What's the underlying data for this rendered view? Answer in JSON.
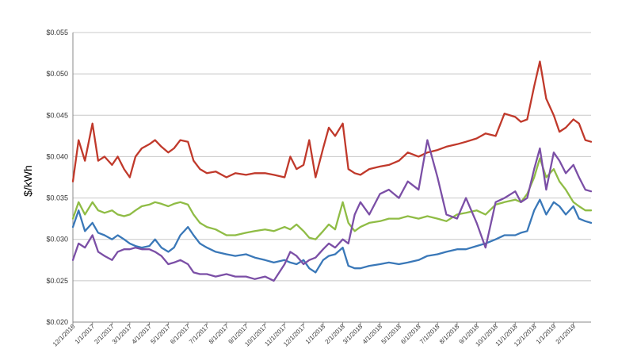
{
  "chart_data": {
    "type": "line",
    "xlabel": "",
    "ylabel": "$/kWh",
    "ylim": [
      0.02,
      0.055
    ],
    "y_ticks": [
      "$0.020",
      "$0.025",
      "$0.030",
      "$0.035",
      "$0.040",
      "$0.045",
      "$0.050",
      "$0.055"
    ],
    "y_tick_values": [
      0.02,
      0.025,
      0.03,
      0.035,
      0.04,
      0.045,
      0.05,
      0.055
    ],
    "categories": [
      "12/1/2016",
      "1/1/2017",
      "2/1/2017",
      "3/1/2017",
      "4/1/2017",
      "5/1/2017",
      "6/1/2017",
      "7/1/2017",
      "8/1/2017",
      "9/1/2017",
      "10/1/2017",
      "11/1/2017",
      "12/1/2017",
      "1/1/2018",
      "2/1/2018",
      "3/1/2018",
      "4/1/2018",
      "5/1/2018",
      "6/1/2018",
      "7/1/2018",
      "8/1/2018",
      "9/1/2018",
      "10/1/2018",
      "11/1/2018",
      "12/1/2018",
      "1/1/2019",
      "2/1/2019"
    ],
    "x_start": "12/1/2016",
    "x_end": "3/1/2019",
    "grid": true,
    "legend": "none",
    "series": [
      {
        "color": "#c0392b",
        "x": [
          "12/1/2016",
          "12/10/2016",
          "12/20/2016",
          "1/1/2017",
          "1/10/2017",
          "1/20/2017",
          "2/1/2017",
          "2/10/2017",
          "2/20/2017",
          "3/1/2017",
          "3/10/2017",
          "3/20/2017",
          "4/1/2017",
          "4/10/2017",
          "4/20/2017",
          "5/1/2017",
          "5/10/2017",
          "5/20/2017",
          "6/1/2017",
          "6/10/2017",
          "6/20/2017",
          "7/1/2017",
          "7/15/2017",
          "8/1/2017",
          "8/15/2017",
          "9/1/2017",
          "9/15/2017",
          "10/1/2017",
          "10/15/2017",
          "11/1/2017",
          "11/10/2017",
          "11/20/2017",
          "12/1/2017",
          "12/10/2017",
          "12/20/2017",
          "1/1/2018",
          "1/10/2018",
          "1/20/2018",
          "2/1/2018",
          "2/10/2018",
          "2/20/2018",
          "3/1/2018",
          "3/15/2018",
          "4/1/2018",
          "4/15/2018",
          "5/1/2018",
          "5/15/2018",
          "6/1/2018",
          "6/15/2018",
          "7/1/2018",
          "7/15/2018",
          "8/1/2018",
          "8/15/2018",
          "9/1/2018",
          "9/15/2018",
          "10/1/2018",
          "10/15/2018",
          "11/1/2018",
          "11/10/2018",
          "11/20/2018",
          "12/1/2018",
          "12/10/2018",
          "12/20/2018",
          "1/1/2019",
          "1/10/2019",
          "1/20/2019",
          "2/1/2019",
          "2/10/2019",
          "2/20/2019",
          "3/1/2019"
        ],
        "values": [
          0.037,
          0.042,
          0.0395,
          0.044,
          0.0395,
          0.04,
          0.039,
          0.04,
          0.0385,
          0.0375,
          0.04,
          0.041,
          0.0415,
          0.042,
          0.0412,
          0.0405,
          0.041,
          0.042,
          0.0418,
          0.0395,
          0.0385,
          0.038,
          0.0382,
          0.0375,
          0.038,
          0.0378,
          0.038,
          0.038,
          0.0378,
          0.0375,
          0.04,
          0.0385,
          0.039,
          0.042,
          0.0375,
          0.041,
          0.0435,
          0.0425,
          0.044,
          0.0385,
          0.038,
          0.0378,
          0.0385,
          0.0388,
          0.039,
          0.0395,
          0.0405,
          0.04,
          0.0405,
          0.0408,
          0.0412,
          0.0415,
          0.0418,
          0.0422,
          0.0428,
          0.0425,
          0.0452,
          0.0448,
          0.0442,
          0.0445,
          0.0485,
          0.0515,
          0.047,
          0.045,
          0.043,
          0.0435,
          0.0445,
          0.044,
          0.042,
          0.0418
        ]
      },
      {
        "color": "#8fbc45",
        "x": [
          "12/1/2016",
          "12/10/2016",
          "12/20/2016",
          "1/1/2017",
          "1/10/2017",
          "1/20/2017",
          "2/1/2017",
          "2/10/2017",
          "2/20/2017",
          "3/1/2017",
          "3/10/2017",
          "3/20/2017",
          "4/1/2017",
          "4/10/2017",
          "4/20/2017",
          "5/1/2017",
          "5/10/2017",
          "5/20/2017",
          "6/1/2017",
          "6/10/2017",
          "6/20/2017",
          "7/1/2017",
          "7/15/2017",
          "8/1/2017",
          "8/15/2017",
          "9/1/2017",
          "9/15/2017",
          "10/1/2017",
          "10/15/2017",
          "11/1/2017",
          "11/10/2017",
          "11/20/2017",
          "12/1/2017",
          "12/10/2017",
          "12/20/2017",
          "1/1/2018",
          "1/10/2018",
          "1/20/2018",
          "2/1/2018",
          "2/10/2018",
          "2/20/2018",
          "3/1/2018",
          "3/15/2018",
          "4/1/2018",
          "4/15/2018",
          "5/1/2018",
          "5/15/2018",
          "6/1/2018",
          "6/15/2018",
          "7/1/2018",
          "7/15/2018",
          "8/1/2018",
          "8/15/2018",
          "9/1/2018",
          "9/15/2018",
          "10/1/2018",
          "10/15/2018",
          "11/1/2018",
          "11/10/2018",
          "11/20/2018",
          "12/1/2018",
          "12/10/2018",
          "12/20/2018",
          "1/1/2019",
          "1/10/2019",
          "1/20/2019",
          "2/1/2019",
          "2/10/2019",
          "2/20/2019",
          "3/1/2019"
        ],
        "values": [
          0.0325,
          0.0345,
          0.033,
          0.0345,
          0.0335,
          0.0332,
          0.0335,
          0.033,
          0.0328,
          0.033,
          0.0335,
          0.034,
          0.0342,
          0.0345,
          0.0343,
          0.034,
          0.0343,
          0.0345,
          0.0342,
          0.033,
          0.032,
          0.0315,
          0.0312,
          0.0305,
          0.0305,
          0.0308,
          0.031,
          0.0312,
          0.031,
          0.0315,
          0.0312,
          0.0318,
          0.031,
          0.0302,
          0.03,
          0.031,
          0.0318,
          0.0312,
          0.0345,
          0.032,
          0.031,
          0.0315,
          0.032,
          0.0322,
          0.0325,
          0.0325,
          0.0328,
          0.0325,
          0.0328,
          0.0325,
          0.0322,
          0.033,
          0.0332,
          0.0335,
          0.033,
          0.0342,
          0.0345,
          0.0348,
          0.0345,
          0.0355,
          0.0375,
          0.0398,
          0.0375,
          0.0385,
          0.037,
          0.036,
          0.0345,
          0.034,
          0.0335,
          0.0335
        ]
      },
      {
        "color": "#3a78b8",
        "x": [
          "12/1/2016",
          "12/10/2016",
          "12/20/2016",
          "1/1/2017",
          "1/10/2017",
          "1/20/2017",
          "2/1/2017",
          "2/10/2017",
          "2/20/2017",
          "3/1/2017",
          "3/10/2017",
          "3/20/2017",
          "4/1/2017",
          "4/10/2017",
          "4/20/2017",
          "5/1/2017",
          "5/10/2017",
          "5/20/2017",
          "6/1/2017",
          "6/10/2017",
          "6/20/2017",
          "7/1/2017",
          "7/15/2017",
          "8/1/2017",
          "8/15/2017",
          "9/1/2017",
          "9/15/2017",
          "10/1/2017",
          "10/15/2017",
          "11/1/2017",
          "11/10/2017",
          "11/20/2017",
          "12/1/2017",
          "12/10/2017",
          "12/20/2017",
          "1/1/2018",
          "1/10/2018",
          "1/20/2018",
          "2/1/2018",
          "2/10/2018",
          "2/20/2018",
          "3/1/2018",
          "3/15/2018",
          "4/1/2018",
          "4/15/2018",
          "5/1/2018",
          "5/15/2018",
          "6/1/2018",
          "6/15/2018",
          "7/1/2018",
          "7/15/2018",
          "8/1/2018",
          "8/15/2018",
          "9/1/2018",
          "9/15/2018",
          "10/1/2018",
          "10/15/2018",
          "11/1/2018",
          "11/10/2018",
          "11/20/2018",
          "12/1/2018",
          "12/10/2018",
          "12/20/2018",
          "1/1/2019",
          "1/10/2019",
          "1/20/2019",
          "2/1/2019",
          "2/10/2019",
          "2/20/2019",
          "3/1/2019"
        ],
        "values": [
          0.0315,
          0.0335,
          0.031,
          0.032,
          0.0308,
          0.0305,
          0.03,
          0.0305,
          0.03,
          0.0295,
          0.0292,
          0.029,
          0.0292,
          0.03,
          0.029,
          0.0285,
          0.029,
          0.0305,
          0.0315,
          0.0305,
          0.0295,
          0.029,
          0.0285,
          0.0282,
          0.028,
          0.0282,
          0.0278,
          0.0275,
          0.0272,
          0.0275,
          0.0272,
          0.027,
          0.0275,
          0.0265,
          0.026,
          0.0275,
          0.028,
          0.0282,
          0.029,
          0.0268,
          0.0265,
          0.0265,
          0.0268,
          0.027,
          0.0272,
          0.027,
          0.0272,
          0.0275,
          0.028,
          0.0282,
          0.0285,
          0.0288,
          0.0288,
          0.0292,
          0.0295,
          0.03,
          0.0305,
          0.0305,
          0.0308,
          0.031,
          0.0335,
          0.0348,
          0.033,
          0.0345,
          0.034,
          0.033,
          0.034,
          0.0325,
          0.0322,
          0.032
        ]
      },
      {
        "color": "#7b4fa6",
        "x": [
          "12/1/2016",
          "12/10/2016",
          "12/20/2016",
          "1/1/2017",
          "1/10/2017",
          "1/20/2017",
          "2/1/2017",
          "2/10/2017",
          "2/20/2017",
          "3/1/2017",
          "3/10/2017",
          "3/20/2017",
          "4/1/2017",
          "4/10/2017",
          "4/20/2017",
          "5/1/2017",
          "5/10/2017",
          "5/20/2017",
          "6/1/2017",
          "6/10/2017",
          "6/20/2017",
          "7/1/2017",
          "7/15/2017",
          "8/1/2017",
          "8/15/2017",
          "9/1/2017",
          "9/15/2017",
          "10/1/2017",
          "10/15/2017",
          "11/1/2017",
          "11/10/2017",
          "11/20/2017",
          "12/1/2017",
          "12/10/2017",
          "12/20/2017",
          "1/1/2018",
          "1/10/2018",
          "1/20/2018",
          "2/1/2018",
          "2/10/2018",
          "2/20/2018",
          "3/1/2018",
          "3/15/2018",
          "4/1/2018",
          "4/15/2018",
          "5/1/2018",
          "5/15/2018",
          "6/1/2018",
          "6/15/2018",
          "7/1/2018",
          "7/15/2018",
          "8/1/2018",
          "8/15/2018",
          "9/1/2018",
          "9/15/2018",
          "10/1/2018",
          "10/15/2018",
          "11/1/2018",
          "11/10/2018",
          "11/20/2018",
          "12/1/2018",
          "12/10/2018",
          "12/20/2018",
          "1/1/2019",
          "1/10/2019",
          "1/20/2019",
          "2/1/2019",
          "2/10/2019",
          "2/20/2019",
          "3/1/2019"
        ],
        "values": [
          0.0275,
          0.0295,
          0.029,
          0.0305,
          0.0285,
          0.028,
          0.0275,
          0.0285,
          0.0288,
          0.0288,
          0.029,
          0.0288,
          0.0288,
          0.0285,
          0.028,
          0.027,
          0.0272,
          0.0275,
          0.027,
          0.026,
          0.0258,
          0.0258,
          0.0255,
          0.0258,
          0.0255,
          0.0255,
          0.0252,
          0.0255,
          0.025,
          0.027,
          0.0285,
          0.028,
          0.027,
          0.0275,
          0.0278,
          0.0288,
          0.0295,
          0.029,
          0.03,
          0.0295,
          0.033,
          0.0345,
          0.033,
          0.0355,
          0.036,
          0.035,
          0.037,
          0.036,
          0.042,
          0.0375,
          0.033,
          0.0325,
          0.035,
          0.032,
          0.029,
          0.0345,
          0.035,
          0.0358,
          0.0345,
          0.035,
          0.0385,
          0.041,
          0.036,
          0.0405,
          0.0395,
          0.038,
          0.039,
          0.0375,
          0.036,
          0.0358
        ]
      }
    ]
  }
}
